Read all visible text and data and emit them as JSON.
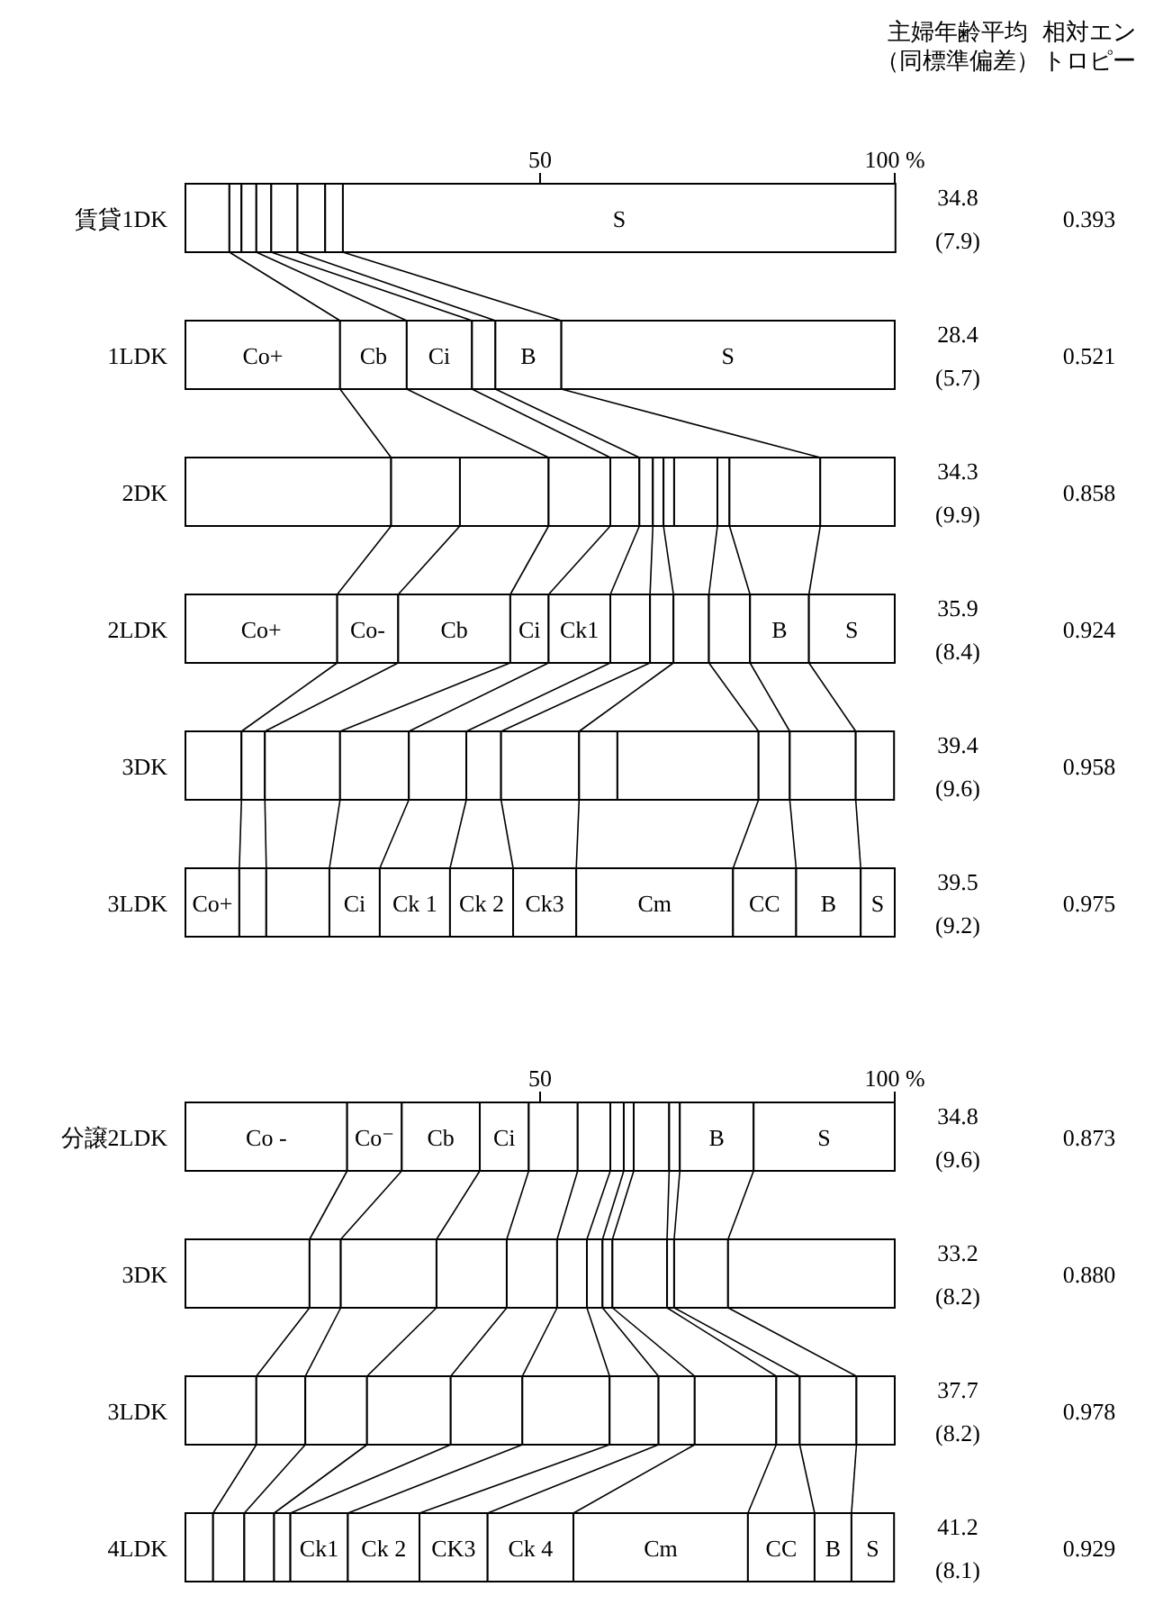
{
  "chart_data": [
    {
      "type": "bar",
      "orientation": "horizontal",
      "stacked": true,
      "categories": [
        "賃貸1DK",
        "1LDK",
        "2DK",
        "2LDK",
        "3DK",
        "3LDK"
      ],
      "xlim": [
        0,
        100
      ],
      "xticks": [
        50,
        {
          "value": 100,
          "label": "100 %"
        }
      ],
      "series": [
        {
          "color": "#ffffff",
          "values": [
            6.2,
            21.8,
            29.0,
            21.4,
            7.9,
            7.6
          ],
          "value_labels": [
            null,
            "Co+",
            null,
            "Co+",
            null,
            "Co+"
          ]
        },
        {
          "color": "#ffffff",
          "values": [
            1.7,
            0,
            9.7,
            8.6,
            3.3,
            3.8
          ],
          "value_labels": [
            null,
            null,
            null,
            "Co-",
            null,
            null
          ]
        },
        {
          "color": "#ffffff",
          "values": [
            2.1,
            9.4,
            12.5,
            15.8,
            10.6,
            8.9
          ],
          "value_labels": [
            null,
            "Cb",
            null,
            "Cb",
            null,
            null
          ]
        },
        {
          "color": "#ffffff",
          "values": [
            2.1,
            9.2,
            8.7,
            5.4,
            9.7,
            7.1
          ],
          "value_labels": [
            null,
            "Ci",
            null,
            "Ci",
            null,
            "Ci"
          ]
        },
        {
          "color": "#ffffff",
          "values": [
            3.7,
            3.3,
            4.1,
            8.7,
            8.1,
            9.9
          ],
          "value_labels": [
            null,
            null,
            null,
            "Ck1",
            null,
            "Ck 1"
          ]
        },
        {
          "color": "#ffffff",
          "values": [
            0,
            0,
            1.9,
            5.6,
            4.9,
            8.9
          ],
          "value_labels": [
            null,
            null,
            null,
            null,
            null,
            "Ck 2"
          ]
        },
        {
          "color": "#ffffff",
          "values": [
            0,
            0,
            1.5,
            3.3,
            11.0,
            8.9
          ],
          "value_labels": [
            null,
            null,
            null,
            null,
            null,
            "Ck3"
          ]
        },
        {
          "color": "#ffffff",
          "values": [
            0,
            0,
            1.5,
            0,
            5.4,
            0
          ]
        },
        {
          "color": "#ffffff",
          "values": [
            3.9,
            0,
            6.1,
            5.0,
            19.9,
            22.1
          ],
          "value_labels": [
            null,
            null,
            null,
            null,
            null,
            "Cm"
          ]
        },
        {
          "color": "#ffffff",
          "values": [
            0,
            0,
            1.7,
            5.8,
            4.4,
            8.9
          ],
          "value_labels": [
            null,
            null,
            null,
            null,
            null,
            "CC"
          ]
        },
        {
          "color": "#ffffff",
          "values": [
            2.5,
            9.3,
            12.8,
            8.3,
            9.3,
            9.1
          ],
          "value_labels": [
            null,
            "B",
            null,
            "B",
            null,
            "B"
          ]
        },
        {
          "color": "#ffffff",
          "values": [
            77.9,
            47.0,
            10.5,
            12.1,
            5.4,
            4.8
          ],
          "value_labels": [
            "S",
            "S",
            null,
            "S",
            null,
            "S"
          ]
        }
      ],
      "annotations": [
        "主婦年齢平均",
        "（同標準偏差）",
        "相対エントロピー",
        "34.8",
        "(7.9)",
        "0.393",
        "28.4",
        "(5.7)",
        "0.521",
        "34.3",
        "(9.9)",
        "0.858",
        "35.9",
        "(8.4)",
        "0.924",
        "39.4",
        "(9.6)",
        "0.958",
        "39.5",
        "(9.2)",
        "0.975"
      ]
    },
    {
      "type": "bar",
      "orientation": "horizontal",
      "stacked": true,
      "categories": [
        "分譲2LDK",
        "3DK",
        "3LDK",
        "4LDK"
      ],
      "xlim": [
        0,
        100
      ],
      "xticks": [
        50,
        {
          "value": 100,
          "label": "100 %"
        }
      ],
      "series": [
        {
          "color": "#ffffff",
          "values": [
            22.8,
            17.5,
            10.0,
            3.9
          ],
          "value_labels": [
            "Co -",
            null,
            null,
            null
          ]
        },
        {
          "color": "#ffffff",
          "values": [
            7.7,
            4.4,
            6.9,
            4.4
          ],
          "value_labels": [
            "Co⁻",
            null,
            null,
            null
          ]
        },
        {
          "color": "#ffffff",
          "values": [
            11.0,
            13.5,
            8.7,
            4.2
          ],
          "value_labels": [
            "Cb",
            null,
            null,
            null
          ]
        },
        {
          "color": "#ffffff",
          "values": [
            6.9,
            9.9,
            11.8,
            2.3
          ],
          "value_labels": [
            "Ci",
            null,
            null,
            null
          ]
        },
        {
          "color": "#ffffff",
          "values": [
            6.9,
            7.1,
            10.1,
            8.1
          ],
          "value_labels": [
            null,
            null,
            null,
            "Ck1"
          ]
        },
        {
          "color": "#ffffff",
          "values": [
            4.6,
            4.2,
            12.3,
            10.1
          ],
          "value_labels": [
            null,
            null,
            null,
            "Ck 2"
          ]
        },
        {
          "color": "#ffffff",
          "values": [
            1.9,
            2.2,
            6.9,
            9.6
          ],
          "value_labels": [
            null,
            null,
            null,
            "CK3"
          ]
        },
        {
          "color": "#ffffff",
          "values": [
            1.4,
            1.4,
            5.1,
            12.1
          ],
          "value_labels": [
            null,
            null,
            null,
            "Ck 4"
          ]
        },
        {
          "color": "#ffffff",
          "values": [
            5.0,
            7.7,
            11.5,
            24.6
          ],
          "value_labels": [
            null,
            null,
            null,
            "Cm"
          ]
        },
        {
          "color": "#ffffff",
          "values": [
            1.5,
            1.0,
            3.3,
            9.4
          ],
          "value_labels": [
            null,
            null,
            null,
            "CC"
          ]
        },
        {
          "color": "#ffffff",
          "values": [
            10.4,
            7.6,
            8.0,
            5.2
          ],
          "value_labels": [
            "B",
            null,
            null,
            "B"
          ]
        },
        {
          "color": "#ffffff",
          "values": [
            19.9,
            23.5,
            5.4,
            6.0
          ],
          "value_labels": [
            "S",
            null,
            null,
            "S"
          ]
        }
      ],
      "annotations": [
        "34.8",
        "(9.6)",
        "0.873",
        "33.2",
        "(8.2)",
        "0.880",
        "37.7",
        "(8.2)",
        "0.978",
        "41.2",
        "(8.1)",
        "0.929"
      ]
    }
  ]
}
